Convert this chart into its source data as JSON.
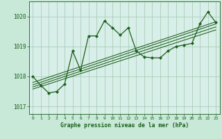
{
  "title": "Graphe pression niveau de la mer (hPa)",
  "background_color": "#c8e8d8",
  "plot_bg_color": "#d8eee8",
  "grid_color": "#a0c8b0",
  "line_color": "#1a5e1a",
  "xlim": [
    -0.5,
    23.5
  ],
  "ylim": [
    1016.75,
    1020.5
  ],
  "yticks": [
    1017,
    1018,
    1019,
    1020
  ],
  "xticks": [
    0,
    1,
    2,
    3,
    4,
    5,
    6,
    7,
    8,
    9,
    10,
    11,
    12,
    13,
    14,
    15,
    16,
    17,
    18,
    19,
    20,
    21,
    22,
    23
  ],
  "series1_x": [
    0,
    1,
    2,
    3,
    4,
    5,
    6,
    7,
    8,
    9,
    10,
    11,
    12,
    13,
    14,
    15,
    16,
    17,
    18,
    19,
    20,
    21,
    22,
    23
  ],
  "series1_y": [
    1018.0,
    1017.7,
    1017.45,
    1017.5,
    1017.75,
    1018.85,
    1018.2,
    1019.35,
    1019.35,
    1019.85,
    1019.62,
    1019.38,
    1019.62,
    1018.85,
    1018.65,
    1018.62,
    1018.62,
    1018.85,
    1019.0,
    1019.05,
    1019.1,
    1019.75,
    1020.15,
    1019.8
  ],
  "series2_x": [
    0,
    23
  ],
  "series2_y": [
    1017.8,
    1019.82
  ],
  "series3_x": [
    0,
    23
  ],
  "series3_y": [
    1017.72,
    1019.75
  ],
  "series4_x": [
    0,
    23
  ],
  "series4_y": [
    1017.65,
    1019.65
  ],
  "series5_x": [
    0,
    23
  ],
  "series5_y": [
    1017.58,
    1019.55
  ]
}
